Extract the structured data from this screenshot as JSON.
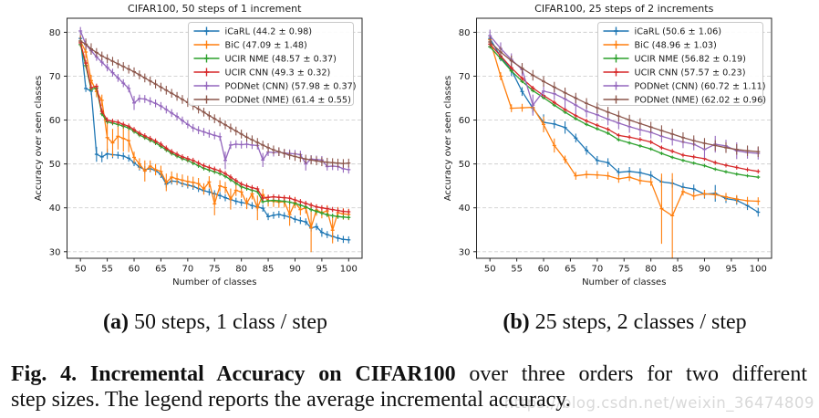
{
  "figure": {
    "subcaptions": [
      {
        "label": "(a)",
        "text": " 50 steps, 1 class / step"
      },
      {
        "label": "(b)",
        "text": " 25 steps, 2 classes / step"
      }
    ],
    "caption": {
      "bold": "Fig. 4. Incremental Accuracy on CIFAR100",
      "line1_rest": " over three orders for two different",
      "line2": "step sizes. The legend reports the average incremental accuracy."
    },
    "watermark": "https://blog.csdn.net/weixin_36474809"
  },
  "chart_data": [
    {
      "type": "line",
      "title": "CIFAR100, 50 steps of 1 increment",
      "xlabel": "Number of classes",
      "ylabel": "Accuracy over seen classes",
      "xlim": [
        47.5,
        102.5
      ],
      "ylim": [
        28.5,
        83.2
      ],
      "xticks": [
        50,
        55,
        60,
        65,
        70,
        75,
        80,
        85,
        90,
        95,
        100
      ],
      "yticks": [
        30,
        40,
        50,
        60,
        70,
        80
      ],
      "grid": "horizontal-dashed",
      "legend_position": "upper right",
      "x": [
        50,
        51,
        52,
        53,
        54,
        55,
        56,
        57,
        58,
        59,
        60,
        61,
        62,
        63,
        64,
        65,
        66,
        67,
        68,
        69,
        70,
        71,
        72,
        73,
        74,
        75,
        76,
        77,
        78,
        79,
        80,
        81,
        82,
        83,
        84,
        85,
        86,
        87,
        88,
        89,
        90,
        91,
        92,
        93,
        94,
        95,
        96,
        97,
        98,
        99,
        100
      ],
      "series": [
        {
          "name": "iCaRL (44.2 ± 0.98)",
          "color": "#1f77b4",
          "err": 0.8,
          "err_spikes": {
            "53": 1.7,
            "54": 1.2,
            "55": 1.2,
            "95": 1.0
          },
          "values": [
            78.6,
            67.2,
            66.6,
            52.2,
            51.6,
            52.3,
            52.1,
            52.0,
            51.8,
            51.3,
            50.3,
            49.3,
            48.7,
            48.9,
            48.5,
            47.6,
            45.4,
            46.1,
            46.0,
            45.5,
            45.2,
            44.9,
            44.4,
            43.9,
            43.6,
            43.2,
            42.8,
            42.3,
            41.9,
            41.5,
            41.2,
            41.0,
            40.5,
            40.2,
            39.9,
            38.0,
            38.3,
            38.5,
            38.2,
            37.9,
            37.4,
            37.1,
            36.8,
            35.4,
            35.7,
            34.4,
            33.9,
            33.5,
            33.1,
            32.8,
            32.7
          ]
        },
        {
          "name": "BiC (47.09 ± 1.48)",
          "color": "#ff7f0e",
          "err": 1.3,
          "err_spikes": {
            "55": 3.4,
            "56": 3.2,
            "57": 3.0,
            "58": 3.0,
            "59": 2.6,
            "62": 2.4,
            "66": 2.0,
            "75": 2.6,
            "78": 2.4,
            "83": 2.8,
            "89": 2.6,
            "93": 5.6,
            "97": 3.0
          },
          "values": [
            78.0,
            75.5,
            69.0,
            66.5,
            64.5,
            56.0,
            54.8,
            56.3,
            55.8,
            55.3,
            51.5,
            50.0,
            48.4,
            49.5,
            48.7,
            48.3,
            45.8,
            47.0,
            46.6,
            46.3,
            46.0,
            45.8,
            45.5,
            44.3,
            45.9,
            40.9,
            45.0,
            44.6,
            42.0,
            44.0,
            43.6,
            41.0,
            43.2,
            40.0,
            43.0,
            41.6,
            41.5,
            41.3,
            41.4,
            38.5,
            41.2,
            39.6,
            40.0,
            35.5,
            39.5,
            38.9,
            39.3,
            34.9,
            38.9,
            38.6,
            38.5
          ]
        },
        {
          "name": "UCIR NME (48.57 ± 0.37)",
          "color": "#2ca02c",
          "err": 0.5,
          "err_spikes": {},
          "values": [
            77.2,
            72.4,
            67.0,
            67.3,
            61.4,
            59.6,
            59.3,
            59.0,
            58.6,
            58.2,
            57.4,
            56.6,
            56.0,
            55.4,
            54.8,
            54.0,
            53.2,
            52.4,
            51.8,
            51.2,
            50.8,
            50.2,
            49.6,
            49.0,
            48.6,
            48.2,
            47.8,
            47.2,
            46.4,
            45.6,
            44.8,
            44.4,
            44.0,
            43.7,
            41.4,
            41.6,
            41.7,
            41.6,
            41.5,
            41.3,
            41.0,
            40.6,
            40.2,
            39.6,
            39.2,
            38.8,
            38.4,
            38.2,
            38.0,
            37.9,
            37.8
          ]
        },
        {
          "name": "UCIR CNN (49.3 ± 0.32)",
          "color": "#d62728",
          "err": 0.6,
          "err_spikes": {},
          "values": [
            77.6,
            73.0,
            67.4,
            67.7,
            62.0,
            60.0,
            59.7,
            59.5,
            59.0,
            58.6,
            57.8,
            57.0,
            56.4,
            55.8,
            55.2,
            54.5,
            53.6,
            52.8,
            52.2,
            51.6,
            51.2,
            50.8,
            50.2,
            49.6,
            49.2,
            48.8,
            48.4,
            47.8,
            47.0,
            46.2,
            45.4,
            45.0,
            44.6,
            44.3,
            42.2,
            42.4,
            42.5,
            42.4,
            42.3,
            42.2,
            41.8,
            41.4,
            41.0,
            40.6,
            40.2,
            40.0,
            39.8,
            39.6,
            39.4,
            39.2,
            39.1
          ]
        },
        {
          "name": "PODNet (CNN) (57.98 ± 0.37)",
          "color": "#9467bd",
          "err": 0.9,
          "err_spikes": {
            "60": 1.6,
            "77": 2.0,
            "84": 1.6,
            "92": 1.5
          },
          "values": [
            80.3,
            77.2,
            75.8,
            74.4,
            73.2,
            72.0,
            70.8,
            69.6,
            68.4,
            67.2,
            63.9,
            64.9,
            64.8,
            64.3,
            63.8,
            63.2,
            62.4,
            61.6,
            60.8,
            59.9,
            59.0,
            58.2,
            57.7,
            57.3,
            56.9,
            56.5,
            56.2,
            50.8,
            54.3,
            54.5,
            54.4,
            54.5,
            54.3,
            54.2,
            50.9,
            52.7,
            52.6,
            52.7,
            52.5,
            52.4,
            52.3,
            52.1,
            50.0,
            51.1,
            51.0,
            50.9,
            49.4,
            49.5,
            49.4,
            48.9,
            48.7
          ]
        },
        {
          "name": "PODNet (NME) (61.4 ± 0.55)",
          "color": "#8c564b",
          "err": 1.0,
          "err_spikes": {
            "51": 1.3,
            "52": 1.3
          },
          "values": [
            78.0,
            77.3,
            76.2,
            75.4,
            74.6,
            74.0,
            73.4,
            72.8,
            72.2,
            71.6,
            71.0,
            70.3,
            69.6,
            68.9,
            68.2,
            67.5,
            66.8,
            66.1,
            65.4,
            64.7,
            64.0,
            63.3,
            62.5,
            61.8,
            61.0,
            60.3,
            59.6,
            58.9,
            58.2,
            57.5,
            56.8,
            56.1,
            55.5,
            54.9,
            54.3,
            53.7,
            53.2,
            52.8,
            52.4,
            52.0,
            51.7,
            51.4,
            51.1,
            50.9,
            50.7,
            50.5,
            50.4,
            50.3,
            50.2,
            50.1,
            50.2
          ]
        }
      ]
    },
    {
      "type": "line",
      "title": "CIFAR100, 25 steps of 2 increments",
      "xlabel": "Number of classes",
      "ylabel": "Accuracy over seen classes",
      "xlim": [
        47.5,
        102.5
      ],
      "ylim": [
        28.5,
        83.2
      ],
      "xticks": [
        50,
        55,
        60,
        65,
        70,
        75,
        80,
        85,
        90,
        95,
        100
      ],
      "yticks": [
        30,
        40,
        50,
        60,
        70,
        80
      ],
      "grid": "horizontal-dashed",
      "legend_position": "upper right",
      "x": [
        50,
        52,
        54,
        56,
        58,
        60,
        62,
        64,
        66,
        68,
        70,
        72,
        74,
        76,
        78,
        80,
        82,
        84,
        86,
        88,
        90,
        92,
        94,
        96,
        98,
        100
      ],
      "series": [
        {
          "name": "iCaRL (50.6 ± 1.06)",
          "color": "#1f77b4",
          "err": 1.0,
          "err_spikes": {
            "54": 1.4,
            "60": 1.8,
            "64": 1.4,
            "92": 1.9
          },
          "values": [
            78.6,
            74.4,
            71.4,
            66.5,
            62.7,
            59.5,
            59.1,
            58.3,
            55.9,
            53.1,
            50.8,
            50.3,
            48.1,
            48.3,
            48.0,
            47.4,
            45.9,
            45.6,
            44.7,
            44.3,
            43.1,
            43.3,
            42.1,
            41.7,
            40.5,
            39.0
          ]
        },
        {
          "name": "BiC (48.96 ± 1.03)",
          "color": "#ff7f0e",
          "err": 0.9,
          "err_spikes": {
            "60": 1.8,
            "62": 1.6,
            "82": 8.0,
            "84": 9.7
          },
          "values": [
            78.3,
            70.0,
            62.7,
            62.8,
            62.9,
            59.0,
            54.2,
            51.0,
            47.3,
            47.6,
            47.5,
            47.3,
            46.6,
            47.0,
            46.2,
            45.9,
            39.8,
            38.2,
            43.7,
            42.7,
            43.2,
            43.0,
            42.5,
            42.0,
            41.6,
            41.5
          ]
        },
        {
          "name": "UCIR NME (56.82 ± 0.19)",
          "color": "#2ca02c",
          "err": 0.4,
          "err_spikes": {},
          "values": [
            76.7,
            74.0,
            71.2,
            68.8,
            66.7,
            65.1,
            63.4,
            61.8,
            60.3,
            59.0,
            58.0,
            57.0,
            55.5,
            54.8,
            54.1,
            53.4,
            52.4,
            51.5,
            50.8,
            50.2,
            49.6,
            48.8,
            48.2,
            47.7,
            47.3,
            47.0
          ]
        },
        {
          "name": "UCIR CNN (57.57 ± 0.23)",
          "color": "#d62728",
          "err": 0.5,
          "err_spikes": {},
          "values": [
            77.3,
            74.6,
            71.9,
            69.5,
            67.3,
            65.6,
            64.0,
            62.4,
            61.0,
            59.8,
            58.8,
            57.9,
            56.5,
            56.1,
            55.6,
            55.0,
            53.7,
            52.9,
            52.0,
            51.6,
            51.2,
            50.3,
            49.7,
            49.2,
            48.7,
            48.3
          ]
        },
        {
          "name": "PODNet (CNN) (60.72 ± 1.11)",
          "color": "#9467bd",
          "err": 1.4,
          "err_spikes": {
            "58": 2.4,
            "64": 2.1,
            "66": 2.1,
            "90": 2.0,
            "92": 1.9,
            "96": 1.9
          },
          "values": [
            79.2,
            76.3,
            73.8,
            71.5,
            63.4,
            66.6,
            66.0,
            64.8,
            63.4,
            62.0,
            61.2,
            60.2,
            59.3,
            58.5,
            57.8,
            57.2,
            56.3,
            55.6,
            55.0,
            54.5,
            53.3,
            54.5,
            54.1,
            53.0,
            52.6,
            52.4
          ]
        },
        {
          "name": "PODNet (NME) (62.02 ± 0.96)",
          "color": "#8c564b",
          "err": 1.2,
          "err_spikes": {},
          "values": [
            77.8,
            75.5,
            73.5,
            71.8,
            70.2,
            68.8,
            67.5,
            66.2,
            65.0,
            63.8,
            62.8,
            61.8,
            60.9,
            60.0,
            59.2,
            58.4,
            57.6,
            56.8,
            56.0,
            55.3,
            54.7,
            54.2,
            53.7,
            53.3,
            53.0,
            52.8
          ]
        }
      ]
    }
  ]
}
